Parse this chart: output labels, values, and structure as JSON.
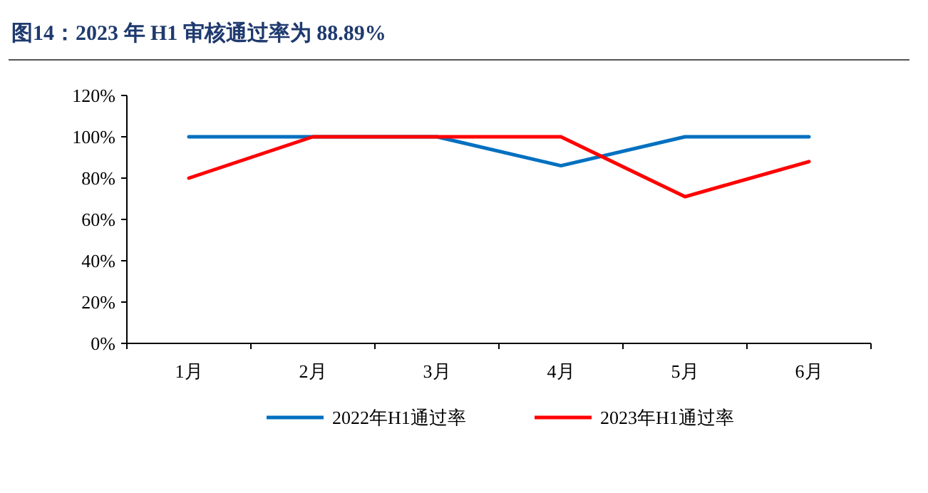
{
  "chart_data": {
    "type": "line",
    "title": "图14：2023 年 H1 审核通过率为 88.89%",
    "categories": [
      "1月",
      "2月",
      "3月",
      "4月",
      "5月",
      "6月"
    ],
    "series": [
      {
        "name": "2022年H1通过率",
        "color": "#0070c0",
        "values": [
          100,
          100,
          100,
          86,
          100,
          100
        ]
      },
      {
        "name": "2023年H1通过率",
        "color": "#ff0000",
        "values": [
          80,
          100,
          100,
          100,
          71,
          88
        ]
      }
    ],
    "ylim": [
      0,
      120
    ],
    "yticks": [
      {
        "value": 0,
        "label": "0%"
      },
      {
        "value": 20,
        "label": "20%"
      },
      {
        "value": 40,
        "label": "40%"
      },
      {
        "value": 60,
        "label": "60%"
      },
      {
        "value": 80,
        "label": "80%"
      },
      {
        "value": 100,
        "label": "100%"
      },
      {
        "value": 120,
        "label": "120%"
      }
    ],
    "legend": "bottom",
    "marker": "none",
    "line_style": "solid"
  }
}
